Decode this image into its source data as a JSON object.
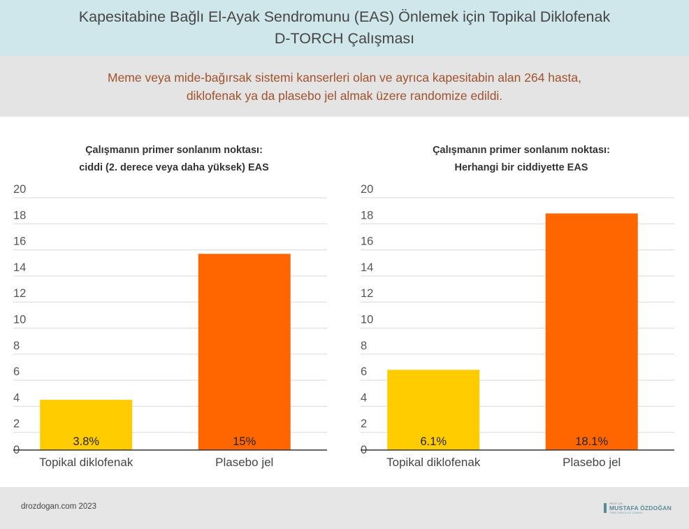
{
  "header": {
    "title_line1": "Kapesitabine Bağlı El-Ayak Sendromunu (EAS) Önlemek için Topikal Diklofenak",
    "title_line2": "D-TORCH Çalışması"
  },
  "intro": {
    "line1": "Meme veya mide-bağırsak sistemi kanserleri olan ve ayrıca kapesitabin alan 264 hasta,",
    "line2": "diklofenak ya da plasebo jel almak üzere randomize edildi."
  },
  "chart_data": [
    {
      "type": "bar",
      "title_line1": "Çalışmanın primer sonlanım noktası:",
      "title_line2": "ciddi (2. derece veya daha yüksek) EAS",
      "categories": [
        "Topikal diklofenak",
        "Plasebo jel"
      ],
      "values": [
        3.8,
        15
      ],
      "value_labels": [
        "3.8%",
        "15%"
      ],
      "colors": [
        "#ffcc00",
        "#ff6600"
      ],
      "ylim": [
        0,
        20
      ],
      "yticks": [
        0,
        2,
        4,
        6,
        8,
        10,
        12,
        14,
        16,
        18,
        20
      ],
      "grid": true
    },
    {
      "type": "bar",
      "title_line1": "Çalışmanın primer sonlanım noktası:",
      "title_line2": "Herhangi bir ciddiyette EAS",
      "categories": [
        "Topikal diklofenak",
        "Plasebo jel"
      ],
      "values": [
        6.1,
        18.1
      ],
      "value_labels": [
        "6.1%",
        "18.1%"
      ],
      "colors": [
        "#ffcc00",
        "#ff6600"
      ],
      "ylim": [
        0,
        20
      ],
      "yticks": [
        0,
        2,
        4,
        6,
        8,
        10,
        12,
        14,
        16,
        18,
        20
      ],
      "grid": true
    }
  ],
  "footer": {
    "site": "drozdogan.com 2023",
    "logo_top": "PROF. DR.",
    "logo_name": "MUSTAFA ÖZDOĞAN",
    "logo_sub": "TIBBİ ONKOLOJİ UZMANI"
  },
  "colors": {
    "header_bg": "#cfe6ea",
    "intro_bg": "#e4e4e4",
    "intro_text": "#a0522d",
    "bar_treatment": "#ffcc00",
    "bar_placebo": "#ff6600"
  }
}
